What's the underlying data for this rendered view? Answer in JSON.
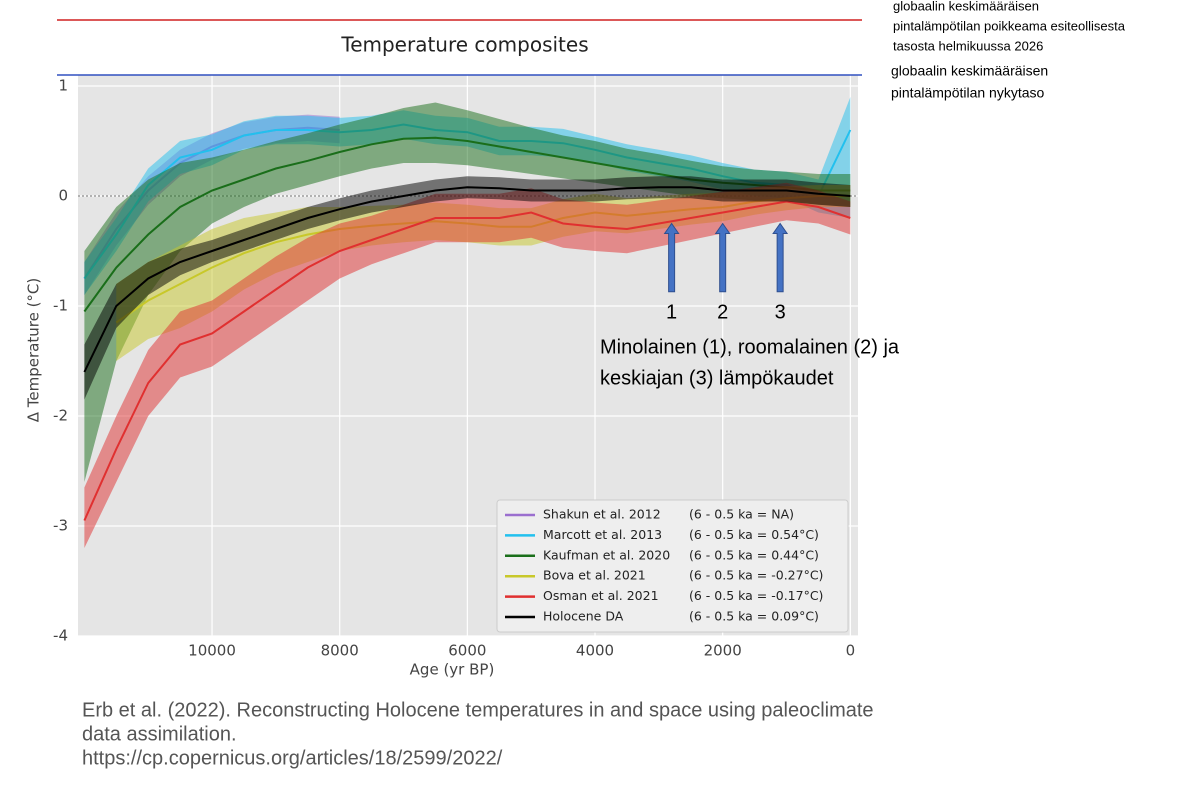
{
  "chart_data": {
    "type": "line",
    "title": "Temperature composites",
    "xlabel": "Age (yr BP)",
    "ylabel": "Δ Temperature (°C)",
    "xlim": [
      12100,
      -120
    ],
    "ylim": [
      -4,
      1.1
    ],
    "xticks": [
      10000,
      8000,
      6000,
      4000,
      2000,
      0
    ],
    "yticks": [
      -4,
      -3,
      -2,
      -1,
      0,
      1
    ],
    "grid": true,
    "zeroline": true,
    "legend": "lower right",
    "x": [
      12000,
      11500,
      11000,
      10500,
      10000,
      9500,
      9000,
      8500,
      8000,
      7500,
      7000,
      6500,
      6000,
      5500,
      5000,
      4500,
      4000,
      3500,
      3000,
      2500,
      2000,
      1500,
      1000,
      500,
      0
    ],
    "series": [
      {
        "name": "Shakun et al. 2012",
        "note": "(6 - 0.5 ka = NA)",
        "color": "#9b6fcf",
        "values": [
          -0.75,
          -0.3,
          0.05,
          0.3,
          0.45,
          0.55,
          0.6,
          0.62,
          0.6,
          null,
          null,
          null,
          null,
          null,
          null,
          null,
          null,
          null,
          null,
          null,
          null,
          null,
          null,
          null,
          null
        ],
        "lower": [
          -0.9,
          -0.45,
          -0.08,
          0.18,
          0.33,
          0.43,
          0.48,
          0.5,
          0.48,
          null,
          null,
          null,
          null,
          null,
          null,
          null,
          null,
          null,
          null,
          null,
          null,
          null,
          null,
          null,
          null
        ],
        "upper": [
          -0.6,
          -0.15,
          0.18,
          0.42,
          0.57,
          0.67,
          0.72,
          0.74,
          0.72,
          null,
          null,
          null,
          null,
          null,
          null,
          null,
          null,
          null,
          null,
          null,
          null,
          null,
          null,
          null,
          null
        ]
      },
      {
        "name": "Marcott et al. 2013",
        "note": "(6 - 0.5 ka = 0.54°C)",
        "color": "#22c0ee",
        "values": [
          -0.75,
          -0.35,
          0.1,
          0.35,
          0.42,
          0.55,
          0.6,
          0.6,
          0.58,
          0.6,
          0.65,
          0.6,
          0.58,
          0.5,
          0.5,
          0.48,
          0.42,
          0.35,
          0.3,
          0.25,
          0.18,
          0.12,
          0.1,
          0.0,
          0.6
        ],
        "lower": [
          -0.9,
          -0.5,
          -0.05,
          0.2,
          0.28,
          0.42,
          0.47,
          0.47,
          0.45,
          0.47,
          0.52,
          0.47,
          0.45,
          0.37,
          0.37,
          0.35,
          0.3,
          0.23,
          0.18,
          0.13,
          0.06,
          0.0,
          -0.02,
          -0.15,
          -0.2
        ],
        "upper": [
          -0.6,
          -0.2,
          0.25,
          0.5,
          0.56,
          0.68,
          0.73,
          0.73,
          0.71,
          0.73,
          0.78,
          0.73,
          0.71,
          0.63,
          0.63,
          0.61,
          0.54,
          0.47,
          0.42,
          0.37,
          0.3,
          0.24,
          0.22,
          0.15,
          0.9
        ]
      },
      {
        "name": "Kaufman et al. 2020",
        "note": "(6 - 0.5 ka = 0.44°C)",
        "color": "#1a6e1a",
        "values": [
          -1.05,
          -0.65,
          -0.35,
          -0.1,
          0.05,
          0.15,
          0.25,
          0.32,
          0.4,
          0.47,
          0.52,
          0.53,
          0.5,
          0.45,
          0.4,
          0.35,
          0.3,
          0.25,
          0.2,
          0.15,
          0.12,
          0.1,
          0.08,
          0.05,
          0.05
        ],
        "lower": [
          -2.6,
          -1.5,
          -0.9,
          -0.5,
          -0.25,
          -0.1,
          0.02,
          0.1,
          0.18,
          0.25,
          0.3,
          0.3,
          0.28,
          0.24,
          0.2,
          0.16,
          0.12,
          0.08,
          0.04,
          0.0,
          -0.02,
          -0.04,
          -0.05,
          -0.08,
          -0.1
        ],
        "upper": [
          -0.5,
          -0.1,
          0.15,
          0.3,
          0.35,
          0.42,
          0.5,
          0.57,
          0.65,
          0.72,
          0.8,
          0.85,
          0.78,
          0.7,
          0.62,
          0.55,
          0.5,
          0.43,
          0.38,
          0.32,
          0.27,
          0.24,
          0.22,
          0.2,
          0.2
        ]
      },
      {
        "name": "Bova et al. 2021",
        "note": "(6 - 0.5 ka = -0.27°C)",
        "color": "#c8c82a",
        "values": [
          null,
          -1.15,
          -0.95,
          -0.8,
          -0.65,
          -0.52,
          -0.42,
          -0.35,
          -0.3,
          -0.27,
          -0.25,
          -0.23,
          -0.25,
          -0.28,
          -0.28,
          -0.2,
          -0.15,
          -0.18,
          -0.15,
          -0.12,
          -0.1,
          -0.05,
          -0.02,
          0.0,
          0.0
        ],
        "lower": [
          null,
          -1.5,
          -1.3,
          -1.2,
          -1.05,
          -0.85,
          -0.7,
          -0.6,
          -0.5,
          -0.45,
          -0.42,
          -0.4,
          -0.42,
          -0.45,
          -0.45,
          -0.37,
          -0.32,
          -0.34,
          -0.3,
          -0.26,
          -0.23,
          -0.17,
          -0.13,
          -0.1,
          -0.1
        ],
        "upper": [
          null,
          -0.8,
          -0.6,
          -0.45,
          -0.3,
          -0.2,
          -0.15,
          -0.1,
          -0.1,
          -0.09,
          -0.08,
          -0.06,
          -0.08,
          -0.11,
          -0.11,
          -0.03,
          0.02,
          -0.02,
          0.0,
          0.02,
          0.03,
          0.07,
          0.09,
          0.1,
          0.1
        ]
      },
      {
        "name": "Osman et al. 2021",
        "note": "(6 - 0.5 ka = -0.17°C)",
        "color": "#e03030",
        "values": [
          -2.95,
          -2.3,
          -1.7,
          -1.35,
          -1.25,
          -1.05,
          -0.85,
          -0.65,
          -0.5,
          -0.4,
          -0.3,
          -0.2,
          -0.2,
          -0.2,
          -0.15,
          -0.25,
          -0.28,
          -0.3,
          -0.25,
          -0.2,
          -0.15,
          -0.1,
          -0.05,
          -0.1,
          -0.2
        ],
        "lower": [
          -3.2,
          -2.6,
          -2.0,
          -1.65,
          -1.55,
          -1.35,
          -1.15,
          -0.95,
          -0.75,
          -0.62,
          -0.52,
          -0.42,
          -0.42,
          -0.42,
          -0.38,
          -0.47,
          -0.5,
          -0.52,
          -0.46,
          -0.4,
          -0.34,
          -0.28,
          -0.22,
          -0.25,
          -0.35
        ],
        "upper": [
          -2.65,
          -2.0,
          -1.4,
          -1.05,
          -0.95,
          -0.75,
          -0.55,
          -0.38,
          -0.25,
          -0.18,
          -0.08,
          0.02,
          0.02,
          0.02,
          0.07,
          -0.03,
          -0.06,
          -0.08,
          -0.04,
          0.0,
          0.04,
          0.08,
          0.12,
          0.05,
          -0.05
        ]
      },
      {
        "name": "Holocene DA",
        "note": "(6 - 0.5 ka = 0.09°C)",
        "color": "#000000",
        "values": [
          -1.6,
          -1.0,
          -0.75,
          -0.6,
          -0.5,
          -0.4,
          -0.3,
          -0.2,
          -0.12,
          -0.05,
          0.0,
          0.05,
          0.08,
          0.07,
          0.05,
          0.05,
          0.05,
          0.07,
          0.08,
          0.08,
          0.05,
          0.05,
          0.05,
          0.02,
          0.0
        ],
        "lower": [
          -1.85,
          -1.2,
          -0.9,
          -0.72,
          -0.6,
          -0.5,
          -0.4,
          -0.3,
          -0.22,
          -0.15,
          -0.1,
          -0.05,
          -0.02,
          -0.03,
          -0.05,
          -0.05,
          -0.05,
          -0.03,
          -0.02,
          -0.02,
          -0.05,
          -0.05,
          -0.05,
          -0.08,
          -0.1
        ],
        "upper": [
          -1.35,
          -0.8,
          -0.6,
          -0.48,
          -0.4,
          -0.3,
          -0.2,
          -0.1,
          -0.02,
          0.05,
          0.1,
          0.15,
          0.18,
          0.17,
          0.15,
          0.15,
          0.15,
          0.17,
          0.18,
          0.18,
          0.15,
          0.15,
          0.15,
          0.12,
          0.1
        ]
      }
    ],
    "reference_lines": [
      {
        "value": 1.6,
        "color": "#d02020",
        "label": [
          "globaalin keskimääräisen",
          "pintalämpötilan poikkeama esiteollisesta",
          "tasosta helmikuussa 2026"
        ]
      },
      {
        "value": 1.1,
        "color": "#3050c0",
        "label": [
          "globaalin keskimääräisen",
          "pintalämpötilan nykytaso"
        ]
      }
    ],
    "arrows": [
      {
        "x": 2800,
        "label": "1"
      },
      {
        "x": 2000,
        "label": "2"
      },
      {
        "x": 1100,
        "label": "3"
      }
    ],
    "arrow_from": -0.87,
    "arrow_to": -0.25,
    "annotation": [
      "Minolainen (1), roomalainen (2) ja",
      "keskiajan (3) lämpökaudet"
    ],
    "source": [
      "Erb et al. (2022). Reconstructing Holocene temperatures in  and space using paleoclimate",
      "data assimilation.",
      "https://cp.copernicus.org/articles/18/2599/2022/"
    ]
  }
}
